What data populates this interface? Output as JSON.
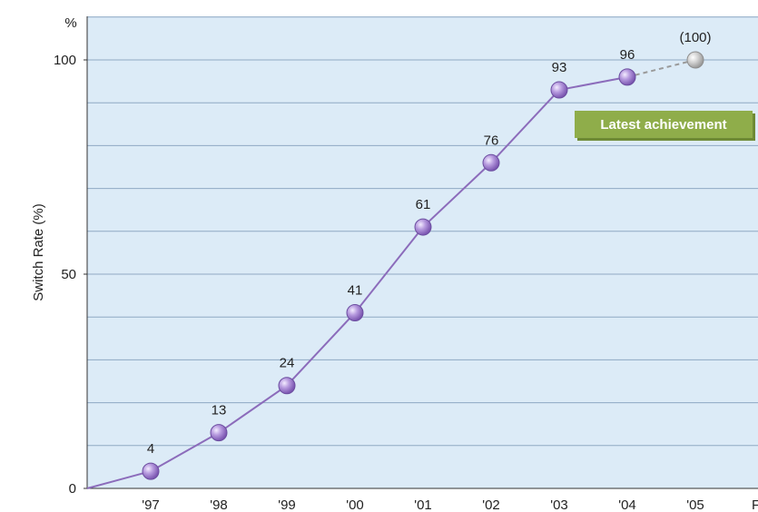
{
  "chart_data": {
    "type": "line",
    "title": "",
    "ylabel": "Switch Rate (%)",
    "yunit": "%",
    "xlabel": "",
    "categories": [
      "'97",
      "'98",
      "'99",
      "'00",
      "'01",
      "'02",
      "'03",
      "'04",
      "'05"
    ],
    "y_ticks": [
      "0",
      "50",
      "100"
    ],
    "ylim": [
      0,
      100
    ],
    "grid": true,
    "series": [
      {
        "values": [
          4,
          13,
          24,
          41,
          61,
          76,
          93,
          96,
          null
        ],
        "labels": [
          "4",
          "13",
          "24",
          "41",
          "61",
          "76",
          "93",
          "96",
          ""
        ],
        "color": "#8c6cbb",
        "style": "solid"
      },
      {
        "values": [
          null,
          null,
          null,
          null,
          null,
          null,
          null,
          96,
          100
        ],
        "labels": [
          "",
          "",
          "",
          "",
          "",
          "",
          "",
          "",
          "(100)"
        ],
        "color": "#9a9a9a",
        "style": "dashed",
        "marker_color": "#bdbdbd"
      }
    ],
    "origin_value": 0,
    "x_axis_trailing_label": "F",
    "annotation": {
      "text": "Latest achievement",
      "background": "#8fad4a"
    },
    "plot_background": "#dcebf7",
    "grid_color": "#8fa9c3"
  }
}
